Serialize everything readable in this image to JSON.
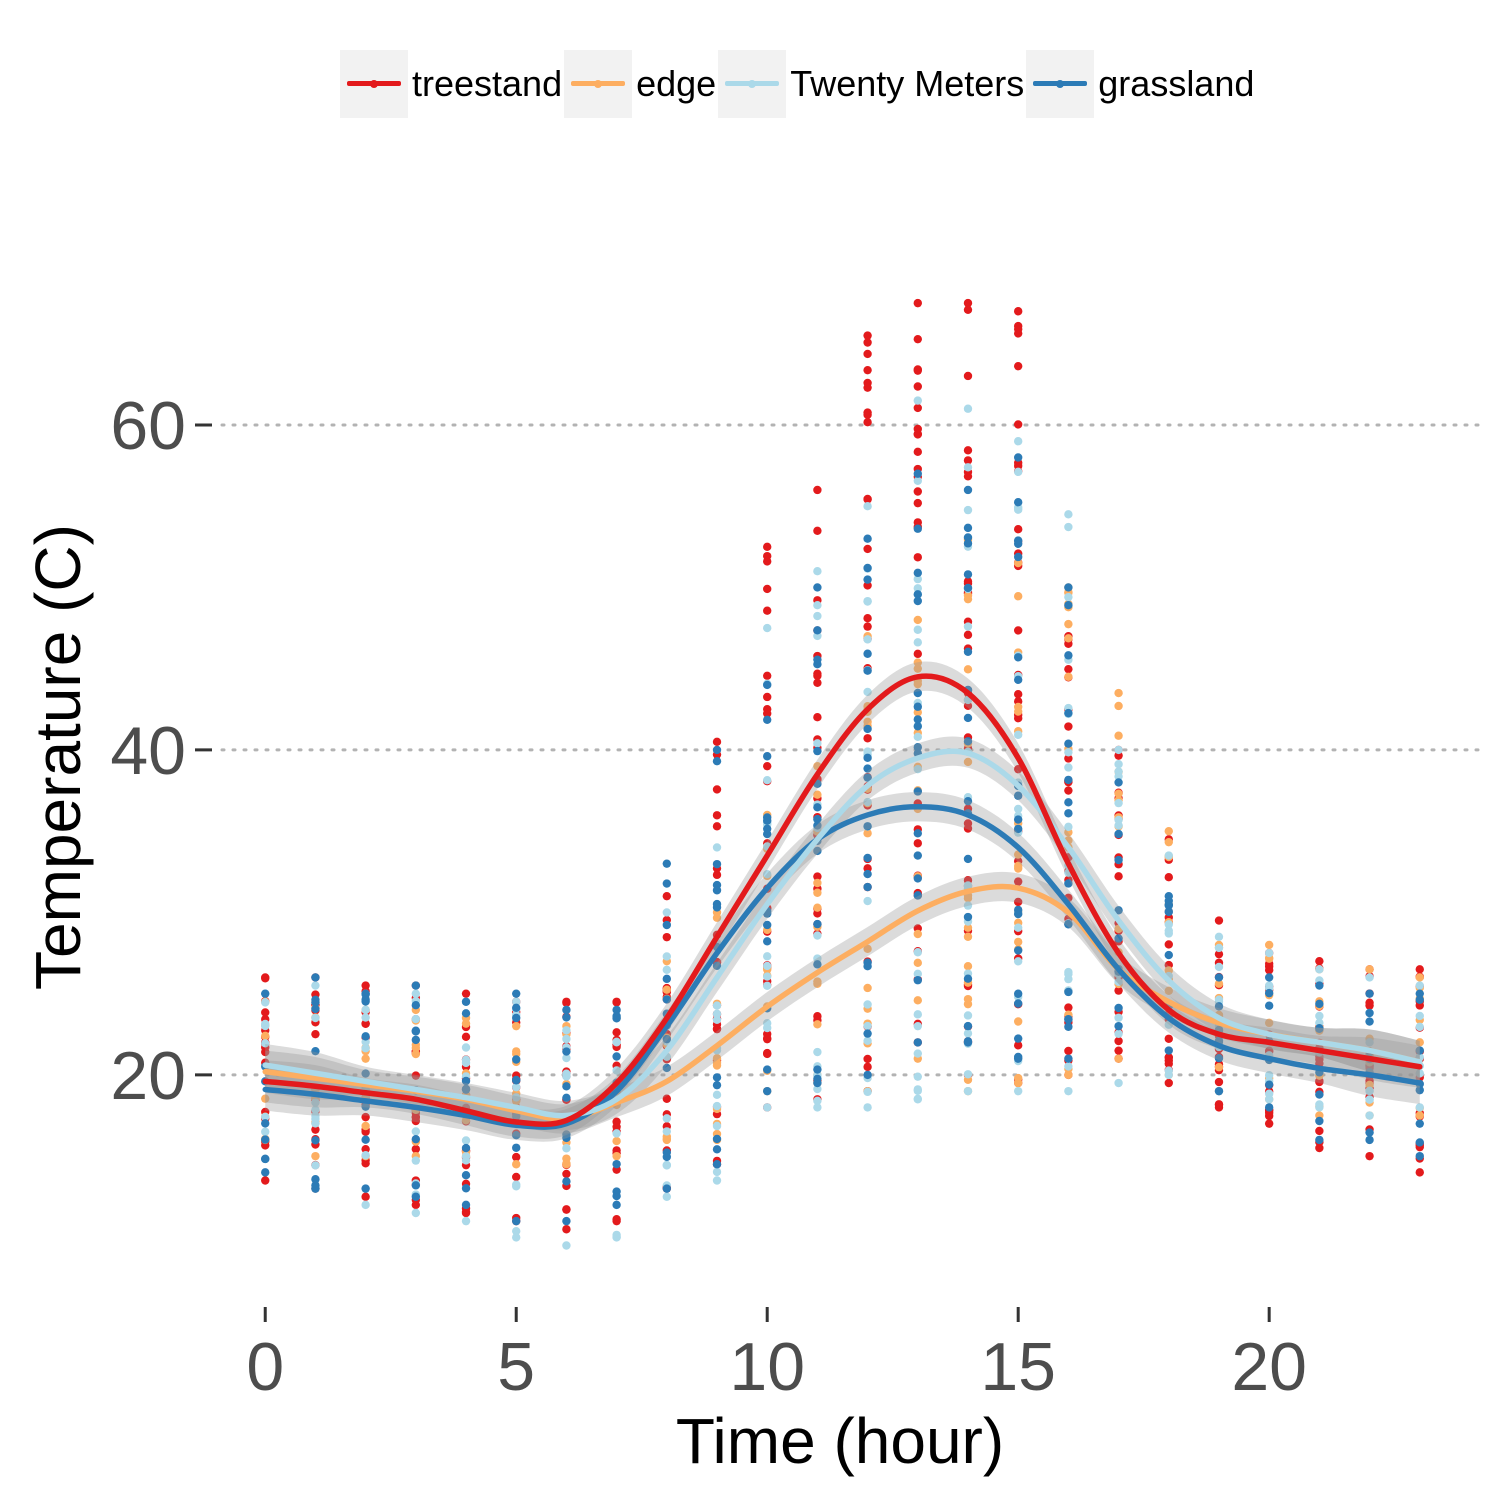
{
  "chart_data": {
    "type": "scatter",
    "title": "",
    "xlabel": "Time (hour)",
    "ylabel": "Temperature (C)",
    "xlim": [
      -1.2,
      24.2
    ],
    "ylim": [
      8.3,
      72
    ],
    "x_ticks": [
      "0",
      "5",
      "10",
      "15",
      "20"
    ],
    "x_tick_values": [
      0,
      5,
      10,
      15,
      20
    ],
    "y_ticks": [
      "20",
      "40",
      "60"
    ],
    "y_tick_values": [
      20,
      40,
      60
    ],
    "grid": "horizontal dotted",
    "legend_position": "top",
    "smoother": "loess with grey confidence band",
    "series": [
      {
        "name": "treestand",
        "color": "#e31a1c",
        "point_range": [
          [
            0,
            13.5,
            26
          ],
          [
            1,
            13,
            26
          ],
          [
            2,
            12.5,
            25.5
          ],
          [
            3,
            12,
            25.5
          ],
          [
            4,
            11.5,
            25
          ],
          [
            5,
            11,
            24.5
          ],
          [
            6,
            10.5,
            24.5
          ],
          [
            7,
            11,
            24.5
          ],
          [
            8,
            13,
            31
          ],
          [
            9,
            14.5,
            40.5
          ],
          [
            10,
            18,
            52.5
          ],
          [
            11,
            18.5,
            56
          ],
          [
            12,
            19,
            65.5
          ],
          [
            13,
            22,
            67.5
          ],
          [
            14,
            20,
            67.5
          ],
          [
            15,
            19.5,
            67
          ],
          [
            16,
            20,
            47
          ],
          [
            17,
            21,
            40
          ],
          [
            18,
            19.5,
            34.5
          ],
          [
            19,
            18,
            29.5
          ],
          [
            20,
            17,
            27.5
          ],
          [
            21,
            15.5,
            27
          ],
          [
            22,
            15,
            26.5
          ],
          [
            23,
            14,
            26.5
          ]
        ],
        "smooth": [
          [
            0,
            19.6
          ],
          [
            1,
            19.3
          ],
          [
            2,
            18.9
          ],
          [
            3,
            18.5
          ],
          [
            4,
            17.8
          ],
          [
            5,
            17.1
          ],
          [
            6,
            17.2
          ],
          [
            7,
            19.5
          ],
          [
            8,
            23.5
          ],
          [
            9,
            28.5
          ],
          [
            10,
            33.5
          ],
          [
            11,
            38.5
          ],
          [
            12,
            42.5
          ],
          [
            13,
            44.5
          ],
          [
            14,
            43.5
          ],
          [
            15,
            39.5
          ],
          [
            16,
            33
          ],
          [
            17,
            27.5
          ],
          [
            18,
            24
          ],
          [
            19,
            22.5
          ],
          [
            20,
            22
          ],
          [
            21,
            21.5
          ],
          [
            22,
            21
          ],
          [
            23,
            20.5
          ]
        ]
      },
      {
        "name": "edge",
        "color": "#fdae61",
        "point_range": [
          [
            0,
            16,
            24.5
          ],
          [
            1,
            15,
            24.5
          ],
          [
            2,
            15,
            24
          ],
          [
            3,
            15,
            24
          ],
          [
            4,
            15,
            23.5
          ],
          [
            5,
            14.5,
            23
          ],
          [
            6,
            14.5,
            23
          ],
          [
            7,
            15,
            23.5
          ],
          [
            8,
            16,
            27
          ],
          [
            9,
            16,
            30
          ],
          [
            10,
            19,
            36
          ],
          [
            11,
            19.5,
            39
          ],
          [
            12,
            19,
            47
          ],
          [
            13,
            21,
            48
          ],
          [
            14,
            19,
            53
          ],
          [
            15,
            19.5,
            51.5
          ],
          [
            16,
            20,
            50
          ],
          [
            17,
            21,
            43.5
          ],
          [
            18,
            20,
            35
          ],
          [
            19,
            19,
            28
          ],
          [
            20,
            18.5,
            28
          ],
          [
            21,
            17.5,
            26.5
          ],
          [
            22,
            17.5,
            26.5
          ],
          [
            23,
            17.5,
            26
          ]
        ],
        "smooth": [
          [
            0,
            20.2
          ],
          [
            1,
            19.8
          ],
          [
            2,
            19.4
          ],
          [
            3,
            19
          ],
          [
            4,
            18.5
          ],
          [
            5,
            17.8
          ],
          [
            6,
            17.3
          ],
          [
            7,
            18.3
          ],
          [
            8,
            19.6
          ],
          [
            9,
            21.8
          ],
          [
            10,
            24.2
          ],
          [
            11,
            26.3
          ],
          [
            12,
            28.2
          ],
          [
            13,
            30.1
          ],
          [
            14,
            31.3
          ],
          [
            15,
            31.5
          ],
          [
            16,
            30
          ],
          [
            17,
            26.5
          ],
          [
            18,
            24.5
          ],
          [
            19,
            23.2
          ],
          [
            20,
            22.5
          ],
          [
            21,
            22
          ],
          [
            22,
            21.5
          ],
          [
            23,
            20.8
          ]
        ]
      },
      {
        "name": "Twenty Meters",
        "color": "#abd9e9",
        "point_range": [
          [
            0,
            16.5,
            25
          ],
          [
            1,
            13,
            25.5
          ],
          [
            2,
            12,
            25
          ],
          [
            3,
            11.5,
            25
          ],
          [
            4,
            11,
            24.5
          ],
          [
            5,
            10,
            24.5
          ],
          [
            6,
            9.5,
            24
          ],
          [
            7,
            10,
            23.5
          ],
          [
            8,
            12.5,
            30
          ],
          [
            9,
            13.5,
            34
          ],
          [
            10,
            18,
            47.5
          ],
          [
            11,
            18,
            51
          ],
          [
            12,
            18,
            55
          ],
          [
            13,
            18.5,
            61.5
          ],
          [
            14,
            19,
            61
          ],
          [
            15,
            19,
            59
          ],
          [
            16,
            19,
            54.5
          ],
          [
            17,
            19.5,
            40
          ],
          [
            18,
            20,
            33.5
          ],
          [
            19,
            19,
            28.5
          ],
          [
            20,
            18.5,
            27.5
          ],
          [
            21,
            18,
            26.5
          ],
          [
            22,
            17.5,
            26
          ],
          [
            23,
            18,
            25.5
          ]
        ],
        "smooth": [
          [
            0,
            20.6
          ],
          [
            1,
            20.1
          ],
          [
            2,
            19.6
          ],
          [
            3,
            19.1
          ],
          [
            4,
            18.6
          ],
          [
            5,
            18
          ],
          [
            6,
            17.5
          ],
          [
            7,
            18.5
          ],
          [
            8,
            21.5
          ],
          [
            9,
            26
          ],
          [
            10,
            30.5
          ],
          [
            11,
            34.5
          ],
          [
            12,
            37.8
          ],
          [
            13,
            39.5
          ],
          [
            14,
            39.8
          ],
          [
            15,
            37.8
          ],
          [
            16,
            34
          ],
          [
            17,
            29.5
          ],
          [
            18,
            25.8
          ],
          [
            19,
            23.5
          ],
          [
            20,
            22.5
          ],
          [
            21,
            22
          ],
          [
            22,
            21.5
          ],
          [
            23,
            20.8
          ]
        ]
      },
      {
        "name": "grassland",
        "color": "#2c7bb6",
        "point_range": [
          [
            0,
            14,
            25
          ],
          [
            1,
            13,
            26
          ],
          [
            2,
            13,
            25
          ],
          [
            3,
            12.5,
            25.5
          ],
          [
            4,
            12,
            24.5
          ],
          [
            5,
            11,
            25
          ],
          [
            6,
            11,
            24
          ],
          [
            7,
            12,
            24
          ],
          [
            8,
            13,
            33
          ],
          [
            9,
            14.5,
            40
          ],
          [
            10,
            19,
            44
          ],
          [
            11,
            19.5,
            50
          ],
          [
            12,
            20,
            53
          ],
          [
            13,
            22,
            57
          ],
          [
            14,
            22,
            56
          ],
          [
            15,
            21,
            58
          ],
          [
            16,
            21,
            50
          ],
          [
            17,
            23,
            38
          ],
          [
            18,
            21.5,
            31
          ],
          [
            19,
            19,
            26
          ],
          [
            20,
            18,
            26
          ],
          [
            21,
            16,
            25.5
          ],
          [
            22,
            16,
            25
          ],
          [
            23,
            15,
            25
          ]
        ],
        "smooth": [
          [
            0,
            19.1
          ],
          [
            1,
            18.8
          ],
          [
            2,
            18.4
          ],
          [
            3,
            18
          ],
          [
            4,
            17.5
          ],
          [
            5,
            16.9
          ],
          [
            6,
            17
          ],
          [
            7,
            19
          ],
          [
            8,
            23
          ],
          [
            9,
            27.5
          ],
          [
            10,
            31.5
          ],
          [
            11,
            34.5
          ],
          [
            12,
            36
          ],
          [
            13,
            36.5
          ],
          [
            14,
            36
          ],
          [
            15,
            34
          ],
          [
            16,
            30.5
          ],
          [
            17,
            26.5
          ],
          [
            18,
            23.5
          ],
          [
            19,
            21.8
          ],
          [
            20,
            21
          ],
          [
            21,
            20.4
          ],
          [
            22,
            20
          ],
          [
            23,
            19.5
          ]
        ]
      }
    ]
  }
}
